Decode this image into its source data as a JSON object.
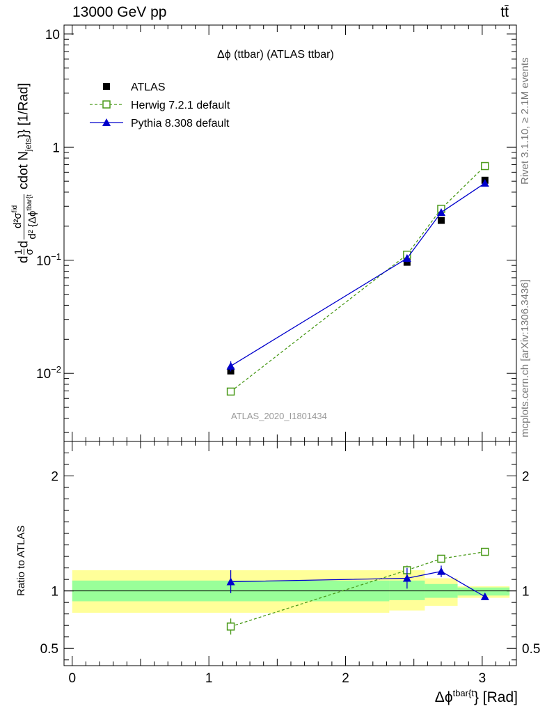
{
  "header": {
    "left": "13000 GeV pp",
    "right": "tt̄"
  },
  "side": {
    "rivet": "Rivet 3.1.10, ≥ 2.1M events",
    "mcplots": "mcplots.cern.ch [arXiv:1306.3436]"
  },
  "chart_data": [
    {
      "type": "scatter",
      "title": "Δϕ (ttbar) (ATLAS ttbar)",
      "watermark": "ATLAS_2020_I1801434",
      "ylabel": "d1σ d d²σ^fid / d²{Δϕ^tbar{t} cdot N_jets}} [1/Rad]",
      "ylabel_parts": {
        "a": "d",
        "frac1_num": "1",
        "frac1_den": "σ",
        "b": "d",
        "frac2_num": "d²σ",
        "frac2_num_sup": "fid",
        "frac2_den": "d² {Δϕ",
        "frac2_den_sup": "tbar{t",
        "c": "cdot N",
        "c_sub": "jets",
        "d": "}} [1/Rad]"
      },
      "y_scale": "log",
      "ylim": [
        0.0025,
        12
      ],
      "xlim": [
        -0.06,
        3.25
      ],
      "y_ticks": [
        {
          "v": 0.01,
          "label": "10",
          "sup": "−2"
        },
        {
          "v": 0.1,
          "label": "10",
          "sup": "−1"
        },
        {
          "v": 1,
          "label": "1",
          "sup": ""
        },
        {
          "v": 10,
          "label": "10",
          "sup": ""
        }
      ],
      "legend": [
        {
          "label": "ATLAS",
          "color": "#000000",
          "marker": "filled-square",
          "line": "none"
        },
        {
          "label": "Herwig 7.2.1 default",
          "color": "#4a9a1a",
          "marker": "open-square",
          "line": "dashed"
        },
        {
          "label": "Pythia 8.308 default",
          "color": "#0000cc",
          "marker": "filled-triangle",
          "line": "solid"
        }
      ],
      "series": [
        {
          "name": "ATLAS",
          "x": [
            1.16,
            2.45,
            2.7,
            3.02
          ],
          "y": [
            0.0105,
            0.096,
            0.225,
            0.51
          ]
        },
        {
          "name": "Herwig 7.2.1 default",
          "x": [
            1.16,
            2.45,
            2.7,
            3.02
          ],
          "y": [
            0.0069,
            0.112,
            0.285,
            0.68
          ],
          "yerr": [
            0.0004,
            0.005,
            0.012,
            0.02
          ]
        },
        {
          "name": "Pythia 8.308 default",
          "x": [
            1.16,
            2.45,
            2.7,
            3.02
          ],
          "y": [
            0.0116,
            0.104,
            0.265,
            0.48
          ],
          "yerr": [
            0.0012,
            0.008,
            0.015,
            0.015
          ]
        }
      ]
    },
    {
      "type": "scatter",
      "ylabel": "Ratio to ATLAS",
      "xlabel": "Δϕ",
      "xlabel_sup": "tbar{t",
      "xlabel_tail": "} [Rad]",
      "xlim": [
        -0.06,
        3.25
      ],
      "ylim": [
        0.35,
        2.3
      ],
      "y_ticks": [
        {
          "v": 0.5,
          "label": "0.5"
        },
        {
          "v": 1,
          "label": "1"
        },
        {
          "v": 2,
          "label": "2"
        }
      ],
      "x_ticks": [
        {
          "v": 0,
          "label": "0"
        },
        {
          "v": 1,
          "label": "1"
        },
        {
          "v": 2,
          "label": "2"
        },
        {
          "v": 3,
          "label": "3"
        }
      ],
      "bands": [
        {
          "x0": 0.0,
          "x1": 2.32,
          "inner": [
            0.91,
            1.09
          ],
          "outer": [
            0.81,
            1.18
          ]
        },
        {
          "x0": 2.32,
          "x1": 2.58,
          "inner": [
            0.92,
            1.09
          ],
          "outer": [
            0.83,
            1.18
          ]
        },
        {
          "x0": 2.58,
          "x1": 2.82,
          "inner": [
            0.94,
            1.06
          ],
          "outer": [
            0.87,
            1.11
          ]
        },
        {
          "x0": 2.82,
          "x1": 3.2,
          "inner": [
            0.96,
            1.03
          ],
          "outer": [
            0.94,
            1.04
          ]
        }
      ],
      "series": [
        {
          "name": "Herwig 7.2.1 default",
          "x": [
            1.16,
            2.45,
            2.7,
            3.02
          ],
          "y": [
            0.69,
            1.18,
            1.28,
            1.34
          ],
          "yerr": [
            0.07,
            0.04,
            0.03,
            0.015
          ]
        },
        {
          "name": "Pythia 8.308 default",
          "x": [
            1.16,
            2.45,
            2.7,
            3.02
          ],
          "y": [
            1.08,
            1.11,
            1.17,
            0.95
          ],
          "yerr": [
            0.1,
            0.09,
            0.05,
            0.02
          ]
        }
      ]
    }
  ]
}
